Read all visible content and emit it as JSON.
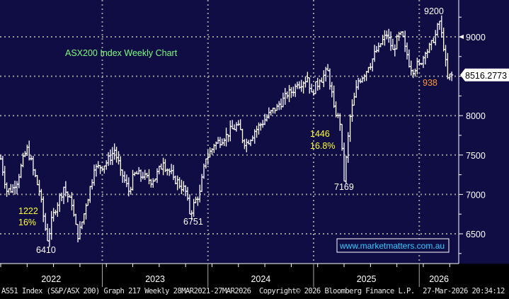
{
  "chart_data": {
    "type": "ohlc",
    "title": "ASX200 Index Weekly Chart",
    "frequency": "weekly",
    "ylim": [
      6200,
      9450
    ],
    "yticks": [
      6500,
      7000,
      7500,
      8000,
      8500,
      9000
    ],
    "ytick_labels": [
      "6500",
      "7000",
      "7500",
      "8000",
      "",
      "9000"
    ],
    "last_price_label": "8516.2773",
    "x_labels": [
      "2022",
      "2023",
      "2024",
      "2025",
      "2026"
    ],
    "year_start_weeks": [
      -2,
      50,
      102,
      154,
      206
    ],
    "grid": true,
    "waypoints_week_close": [
      [
        0,
        7450
      ],
      [
        3,
        7040
      ],
      [
        7,
        7090
      ],
      [
        13,
        7600
      ],
      [
        16,
        7310
      ],
      [
        19,
        7040
      ],
      [
        23,
        6410
      ],
      [
        26,
        6770
      ],
      [
        31,
        7090
      ],
      [
        35,
        6860
      ],
      [
        38,
        6440
      ],
      [
        42,
        6860
      ],
      [
        46,
        7310
      ],
      [
        52,
        7400
      ],
      [
        56,
        7560
      ],
      [
        59,
        7310
      ],
      [
        63,
        7040
      ],
      [
        66,
        7270
      ],
      [
        70,
        7220
      ],
      [
        75,
        7170
      ],
      [
        80,
        7400
      ],
      [
        85,
        7220
      ],
      [
        91,
        7040
      ],
      [
        93,
        6751
      ],
      [
        98,
        7040
      ],
      [
        101,
        7450
      ],
      [
        105,
        7620
      ],
      [
        111,
        7760
      ],
      [
        117,
        7890
      ],
      [
        120,
        7620
      ],
      [
        125,
        7800
      ],
      [
        131,
        7980
      ],
      [
        136,
        8120
      ],
      [
        141,
        8250
      ],
      [
        146,
        8390
      ],
      [
        151,
        8480
      ],
      [
        153,
        8300
      ],
      [
        157,
        8440
      ],
      [
        161,
        8570
      ],
      [
        164,
        8120
      ],
      [
        167,
        7890
      ],
      [
        169,
        7169
      ],
      [
        172,
        7990
      ],
      [
        176,
        8440
      ],
      [
        181,
        8610
      ],
      [
        186,
        8880
      ],
      [
        190,
        9020
      ],
      [
        193,
        8840
      ],
      [
        197,
        9060
      ],
      [
        199,
        8880
      ],
      [
        202,
        8570
      ],
      [
        206,
        8660
      ],
      [
        209,
        8790
      ],
      [
        213,
        8930
      ],
      [
        216,
        9200
      ],
      [
        218,
        8840
      ],
      [
        220,
        8480
      ],
      [
        222,
        8516
      ]
    ],
    "annotations": [
      {
        "text": "ASX200 Index Weekly Chart",
        "color": "#7CFC7C"
      },
      {
        "text": "1222",
        "color": "#ffff33"
      },
      {
        "text": "16%",
        "color": "#ffff33"
      },
      {
        "text": "6410",
        "color": "#ffffff"
      },
      {
        "text": "6751",
        "color": "#ffffff"
      },
      {
        "text": "1446",
        "color": "#ffff33"
      },
      {
        "text": "16.8%",
        "color": "#ffff33"
      },
      {
        "text": "7169",
        "color": "#ffffff"
      },
      {
        "text": "9200",
        "color": "#ffffff"
      },
      {
        "text": "938",
        "color": "#ff9933"
      }
    ],
    "watermark": "www.marketmatters.com.au"
  },
  "footer": {
    "left": "AS51 Index (S&P/ASX 200) Graph 217 Weekly 28MAR2021-27MAR2026",
    "mid": "Copyright© 2026 Bloomberg Finance L.P.",
    "right": "27-Mar-2026 20:34:12"
  },
  "colors": {
    "plot_bg": "#100d45",
    "bar": "#ffffff",
    "grid": "#9a9a9a",
    "url": "#33ccff"
  }
}
